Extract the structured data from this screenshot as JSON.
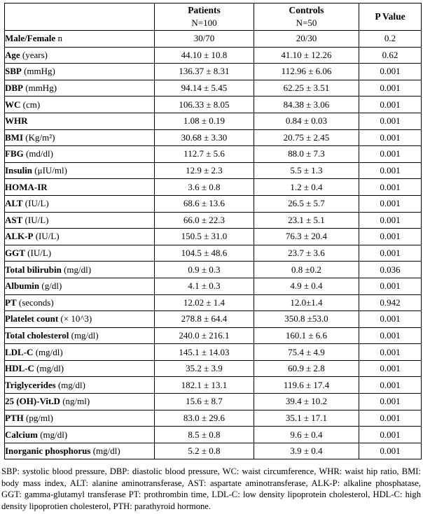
{
  "page": {
    "background_color": "#ffffff",
    "text_color": "#000000",
    "border_color": "#000000"
  },
  "table": {
    "header": {
      "corner": "",
      "patients": {
        "line1": "Patients",
        "line2": "N=100"
      },
      "controls": {
        "line1": "Controls",
        "line2": "N=50"
      },
      "p_value": "P Value"
    },
    "rows": [
      {
        "label_bold": "Male/Female",
        "label_rest": " n",
        "patients": "30/70",
        "controls": "20/30",
        "p": "0.2"
      },
      {
        "label_bold": "Age",
        "label_rest": " (years)",
        "patients": "44.10 ± 10.8",
        "controls": "41.10 ± 12.26",
        "p": "0.62"
      },
      {
        "label_bold": "SBP",
        "label_rest": " (mmHg)",
        "patients": "136.37 ± 8.31",
        "controls": "112.96 ± 6.06",
        "p": "0.001"
      },
      {
        "label_bold": "DBP",
        "label_rest": " (mmHg)",
        "patients": "94.14 ± 5.45",
        "controls": "62.25 ± 3.51",
        "p": "0.001"
      },
      {
        "label_bold": "WC",
        "label_rest": " (cm)",
        "patients": "106.33 ± 8.05",
        "controls": "84.38 ± 3.06",
        "p": "0.001"
      },
      {
        "label_bold": "WHR",
        "label_rest": "",
        "patients": "1.08 ± 0.19",
        "controls": "0.84 ± 0.03",
        "p": "0.001"
      },
      {
        "label_bold": "BMI",
        "label_rest": " (Kg/m²)",
        "patients": "30.68 ± 3.30",
        "controls": "20.75 ± 2.45",
        "p": "0.001"
      },
      {
        "label_bold": "FBG",
        "label_rest": " (md/dl)",
        "patients": "112.7 ± 5.6",
        "controls": "88.0 ± 7.3",
        "p": "0.001"
      },
      {
        "label_bold": "Insulin",
        "label_rest": " (μIU/ml)",
        "patients": "12.9 ± 2.3",
        "controls": "5.5 ± 1.3",
        "p": "0.001"
      },
      {
        "label_bold": "HOMA-IR",
        "label_rest": "",
        "patients": "3.6 ± 0.8",
        "controls": "1.2 ± 0.4",
        "p": "0.001"
      },
      {
        "label_bold": "ALT",
        "label_rest": " (IU/L)",
        "patients": "68.6 ± 13.6",
        "controls": "26.5 ± 5.7",
        "p": "0.001"
      },
      {
        "label_bold": "AST",
        "label_rest": " (IU/L)",
        "patients": "66.0 ± 22.3",
        "controls": "23.1 ± 5.1",
        "p": "0.001"
      },
      {
        "label_bold": "ALK-P",
        "label_rest": " (IU/L)",
        "patients": "150.5 ± 31.0",
        "controls": "76.3 ± 20.4",
        "p": "0.001"
      },
      {
        "label_bold": "GGT",
        "label_rest": " (IU/L)",
        "patients": "104.5 ± 48.6",
        "controls": "23.7 ± 3.6",
        "p": "0.001"
      },
      {
        "label_bold": "Total bilirubin",
        "label_rest": " (mg/dl)",
        "patients": "0.9 ± 0.3",
        "controls": "0.8 ±0.2",
        "p": "0.036"
      },
      {
        "label_bold": "Albumin",
        "label_rest": " (g/dl)",
        "patients": "4.1 ± 0.3",
        "controls": "4.9 ± 0.4",
        "p": "0.001"
      },
      {
        "label_bold": "PT",
        "label_rest": " (seconds)",
        "patients": "12.02 ± 1.4",
        "controls": "12.0±1.4",
        "p": "0.942"
      },
      {
        "label_bold": "Platelet count",
        "label_rest": " (× 10^3)",
        "patients": "278.8 ± 64.4",
        "controls": "350.8 ±53.0",
        "p": "0.001"
      },
      {
        "label_bold": "Total cholesterol",
        "label_rest": " (mg/dl)",
        "patients": "240.0 ± 216.1",
        "controls": "160.1 ± 6.6",
        "p": "0.001"
      },
      {
        "label_bold": "LDL-C",
        "label_rest": " (mg/dl)",
        "patients": "145.1 ± 14.03",
        "controls": "75.4 ± 4.9",
        "p": "0.001"
      },
      {
        "label_bold": "HDL-C",
        "label_rest": " (mg/dl)",
        "patients": "35.2 ± 3.9",
        "controls": "60.9 ± 2.8",
        "p": "0.001"
      },
      {
        "label_bold": "Triglycerides",
        "label_rest": " (mg/dl)",
        "patients": "182.1 ± 13.1",
        "controls": "119.6 ± 17.4",
        "p": "0.001"
      },
      {
        "label_bold": "25 (OH)-Vit.D",
        "label_rest": " (ng/ml)",
        "patients": "15.6 ± 8.7",
        "controls": "39.4 ± 10.2",
        "p": "0.001"
      },
      {
        "label_bold": "PTH",
        "label_rest": " (pg/ml)",
        "patients": "83.0 ± 29.6",
        "controls": "35.1 ± 17.1",
        "p": "0.001"
      },
      {
        "label_bold": "Calcium",
        "label_rest": " (mg/dl)",
        "patients": "8.5 ± 0.8",
        "controls": "9.6 ± 0.4",
        "p": "0.001"
      },
      {
        "label_bold": "Inorganic phosphorus",
        "label_rest": " (mg/dl)",
        "patients": "5.2 ± 0.8",
        "controls": "3.9 ± 0.4",
        "p": "0.001"
      }
    ],
    "footnote": "SBP: systolic blood pressure, DBP: diastolic blood pressure, WC: waist circumference, WHR: waist hip ratio, BMI: body mass index, ALT: alanine aminotransferase, AST: aspartate aminotransferase, ALK-P: alkaline phosphatase, GGT: gamma-glutamyl transferase PT: prothrombin time, LDL-C: low density lipoprotein cholesterol, HDL-C: high density lipoprotien cholesterol, PTH: parathyroid hormone."
  }
}
